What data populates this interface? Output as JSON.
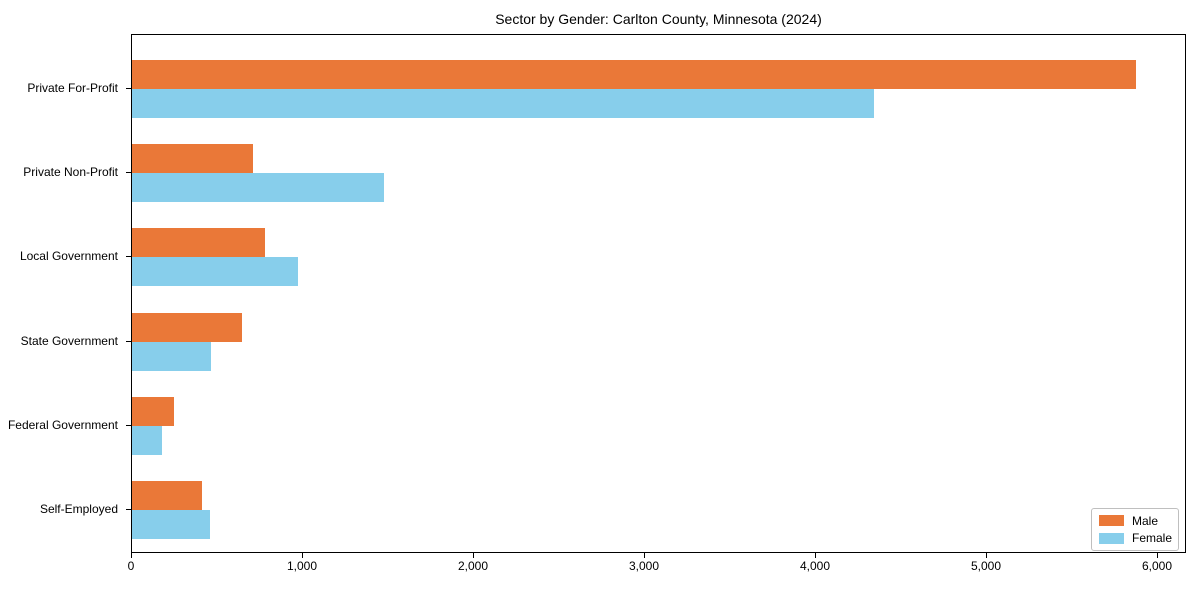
{
  "title": "Sector by Gender: Carlton County, Minnesota (2024)",
  "chart_data": {
    "type": "bar",
    "orientation": "horizontal",
    "title": "Sector by Gender: Carlton County, Minnesota (2024)",
    "categories": [
      "Private For-Profit",
      "Private Non-Profit",
      "Local Government",
      "State Government",
      "Federal Government",
      "Self-Employed"
    ],
    "series": [
      {
        "name": "Male",
        "color": "#EA7838",
        "values": [
          5870,
          710,
          780,
          645,
          245,
          410
        ]
      },
      {
        "name": "Female",
        "color": "#87CEEB",
        "values": [
          4340,
          1475,
          970,
          460,
          175,
          455
        ]
      }
    ],
    "xlabel": "",
    "ylabel": "",
    "xlim": [
      0,
      6170
    ],
    "xticks": [
      0,
      1000,
      2000,
      3000,
      4000,
      5000,
      6000
    ],
    "xtick_labels": [
      "0",
      "1,000",
      "2,000",
      "3,000",
      "4,000",
      "5,000",
      "6,000"
    ],
    "grid": false,
    "legend_position": "lower right",
    "legend_labels": [
      "Male",
      "Female"
    ]
  },
  "colors": {
    "male": "#EA7838",
    "female": "#87CEEB",
    "axis": "#000000",
    "background": "#ffffff"
  }
}
